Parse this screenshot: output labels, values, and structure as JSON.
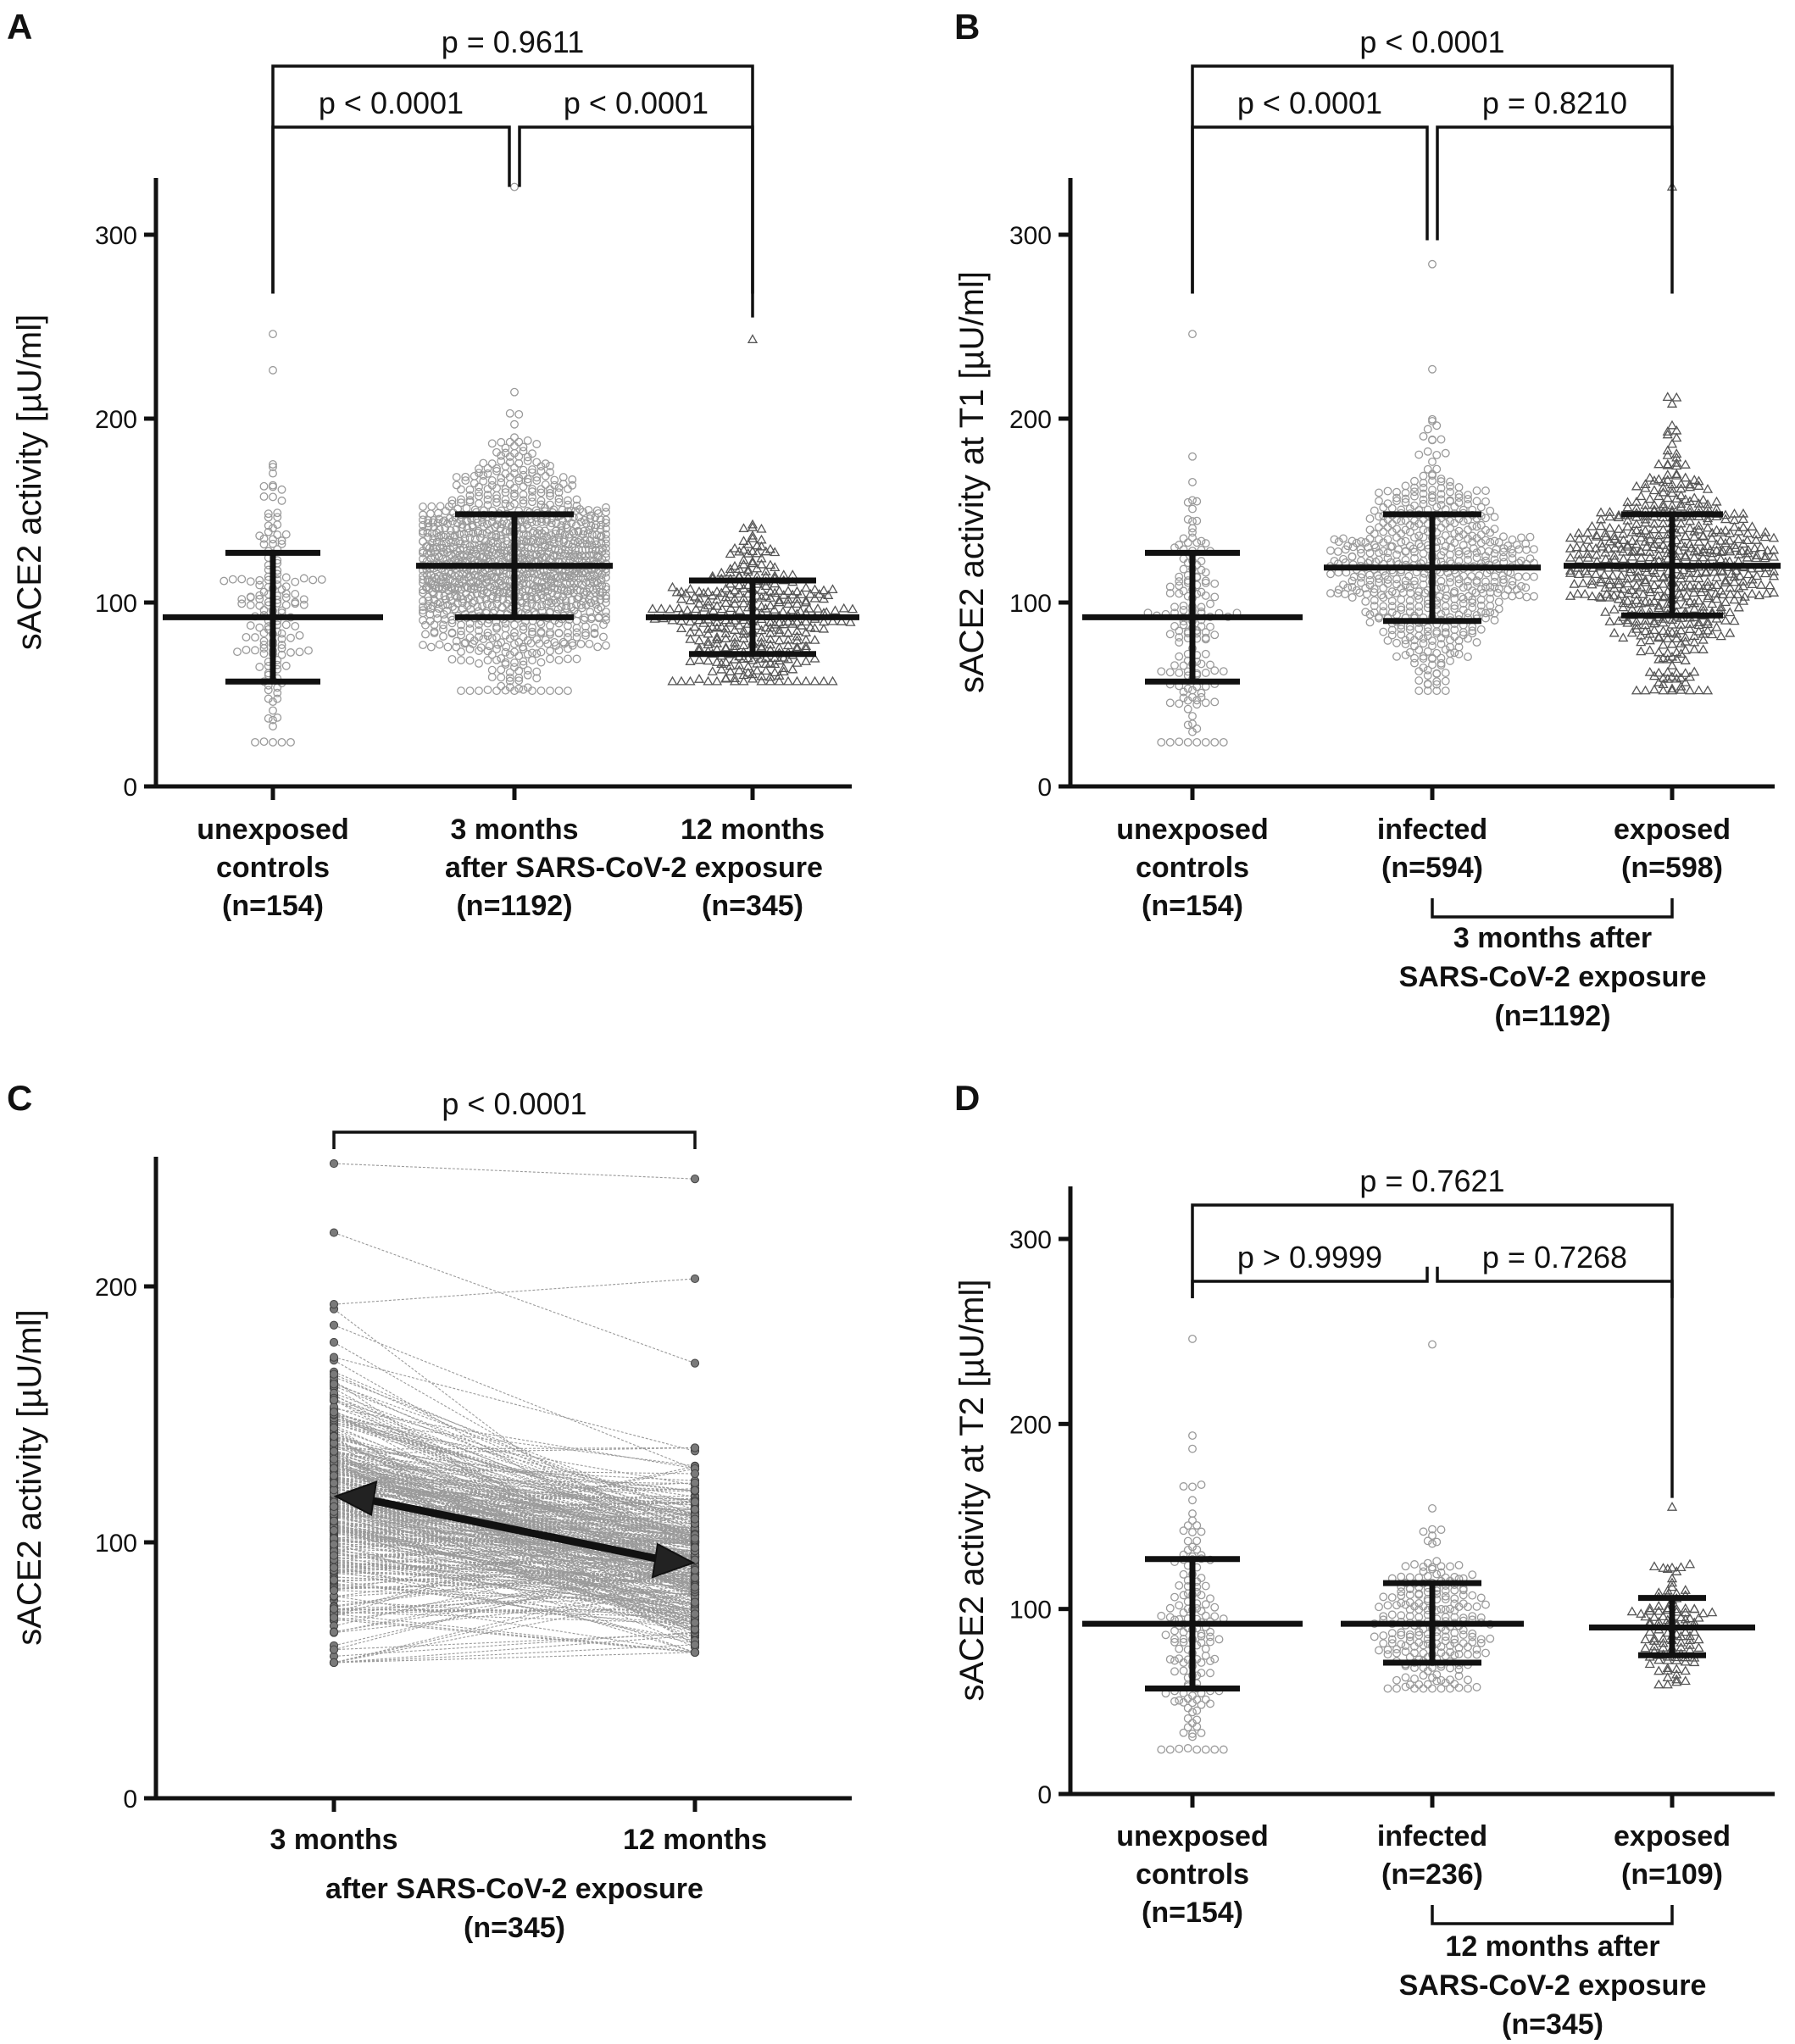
{
  "panels": [
    {
      "letter": "A",
      "ylabel": "sACE2 activity [µU/ml]",
      "yticks": [
        0,
        100,
        200,
        300
      ],
      "groups": [
        {
          "label_lines": [
            "unexposed",
            "controls",
            "(n=154)"
          ],
          "marker": "circle",
          "n": 154,
          "mean": 92,
          "sd_low": 57,
          "sd_high": 127,
          "min": 24,
          "max": 246
        },
        {
          "label_lines": [
            "3 months",
            "",
            "(n=1192)"
          ],
          "marker": "circle",
          "n": 1192,
          "mean": 120,
          "sd_low": 92,
          "sd_high": 148,
          "min": 52,
          "max": 326
        },
        {
          "label_lines": [
            "12 months",
            "",
            "(n=345)"
          ],
          "marker": "triangle",
          "n": 345,
          "mean": 92,
          "sd_low": 72,
          "sd_high": 112,
          "min": 57,
          "max": 243
        }
      ],
      "shared_label": "after SARS-CoV-2 exposure",
      "brackets": [
        {
          "text": "p = 0.9611"
        },
        {
          "text": "p < 0.0001"
        },
        {
          "text": "p < 0.0001"
        }
      ]
    },
    {
      "letter": "B",
      "ylabel": "sACE2 activity at T1 [µU/ml]",
      "yticks": [
        0,
        100,
        200,
        300
      ],
      "groups": [
        {
          "label_lines": [
            "unexposed",
            "controls",
            "(n=154)"
          ],
          "marker": "circle",
          "n": 154,
          "mean": 92,
          "sd_low": 57,
          "sd_high": 127,
          "min": 24,
          "max": 246
        },
        {
          "label_lines": [
            "infected",
            "(n=594)"
          ],
          "marker": "circle",
          "n": 594,
          "mean": 119,
          "sd_low": 90,
          "sd_high": 148,
          "min": 52,
          "max": 284
        },
        {
          "label_lines": [
            "exposed",
            "(n=598)"
          ],
          "marker": "triangle",
          "n": 598,
          "mean": 120,
          "sd_low": 93,
          "sd_high": 148,
          "min": 52,
          "max": 326
        }
      ],
      "group_bracket_lines": [
        "3 months after",
        "SARS-CoV-2 exposure",
        "(n=1192)"
      ],
      "brackets": [
        {
          "text": "p < 0.0001"
        },
        {
          "text": "p < 0.0001"
        },
        {
          "text": "p = 0.8210"
        }
      ]
    },
    {
      "letter": "C",
      "ylabel": "sACE2 activity [µU/ml]",
      "yticks": [
        0,
        100,
        200
      ],
      "categories": [
        "3 months",
        "12 months"
      ],
      "x_caption_lines": [
        "after SARS-CoV-2 exposure",
        "(n=345)"
      ],
      "bracket": {
        "text": "p < 0.0001"
      },
      "mean_start": 118,
      "mean_end": 92,
      "n_pairs": 345
    },
    {
      "letter": "D",
      "ylabel": "sACE2 activity at T2 [µU/ml]",
      "yticks": [
        0,
        100,
        200,
        300
      ],
      "groups": [
        {
          "label_lines": [
            "unexposed",
            "controls",
            "(n=154)"
          ],
          "marker": "circle",
          "n": 154,
          "mean": 92,
          "sd_low": 57,
          "sd_high": 127,
          "min": 24,
          "max": 246
        },
        {
          "label_lines": [
            "infected",
            "(n=236)"
          ],
          "marker": "circle",
          "n": 236,
          "mean": 92,
          "sd_low": 71,
          "sd_high": 114,
          "min": 57,
          "max": 243
        },
        {
          "label_lines": [
            "exposed",
            "(n=109)"
          ],
          "marker": "triangle",
          "n": 109,
          "mean": 90,
          "sd_low": 75,
          "sd_high": 106,
          "min": 59,
          "max": 155
        }
      ],
      "group_bracket_lines": [
        "12 months after",
        "SARS-CoV-2 exposure",
        "(n=345)"
      ],
      "brackets": [
        {
          "text": "p = 0.7621"
        },
        {
          "text": "p > 0.9999"
        },
        {
          "text": "p = 0.7268"
        }
      ]
    }
  ],
  "chart_data": [
    {
      "type": "scatter",
      "panel": "A",
      "ylabel": "sACE2 activity [µU/ml]",
      "ylim": [
        0,
        330
      ],
      "categories": [
        "unexposed controls (n=154)",
        "3 months after SARS-CoV-2 exposure (n=1192)",
        "12 months after SARS-CoV-2 exposure (n=345)"
      ],
      "series": [
        {
          "name": "mean",
          "values": [
            92,
            120,
            92
          ]
        },
        {
          "name": "SD lower",
          "values": [
            57,
            92,
            72
          ]
        },
        {
          "name": "SD upper",
          "values": [
            127,
            148,
            112
          ]
        }
      ],
      "p_values": [
        "p = 0.9611",
        "p < 0.0001",
        "p < 0.0001"
      ]
    },
    {
      "type": "scatter",
      "panel": "B",
      "ylabel": "sACE2 activity at T1 [µU/ml]",
      "ylim": [
        0,
        330
      ],
      "categories": [
        "unexposed controls (n=154)",
        "infected (n=594)",
        "exposed (n=598)"
      ],
      "series": [
        {
          "name": "mean",
          "values": [
            92,
            119,
            120
          ]
        },
        {
          "name": "SD lower",
          "values": [
            57,
            90,
            93
          ]
        },
        {
          "name": "SD upper",
          "values": [
            127,
            148,
            148
          ]
        }
      ],
      "p_values": [
        "p < 0.0001",
        "p < 0.0001",
        "p = 0.8210"
      ]
    },
    {
      "type": "line",
      "panel": "C",
      "ylabel": "sACE2 activity [µU/ml]",
      "ylim": [
        0,
        250
      ],
      "categories": [
        "3 months",
        "12 months"
      ],
      "series": [
        {
          "name": "mean",
          "values": [
            118,
            92
          ]
        }
      ],
      "p_values": [
        "p < 0.0001"
      ]
    },
    {
      "type": "scatter",
      "panel": "D",
      "ylabel": "sACE2 activity at T2 [µU/ml]",
      "ylim": [
        0,
        330
      ],
      "categories": [
        "unexposed controls (n=154)",
        "infected (n=236)",
        "exposed (n=109)"
      ],
      "series": [
        {
          "name": "mean",
          "values": [
            92,
            92,
            90
          ]
        },
        {
          "name": "SD lower",
          "values": [
            57,
            71,
            75
          ]
        },
        {
          "name": "SD upper",
          "values": [
            127,
            114,
            106
          ]
        }
      ],
      "p_values": [
        "p = 0.7621",
        "p > 0.9999",
        "p = 0.7268"
      ]
    }
  ]
}
